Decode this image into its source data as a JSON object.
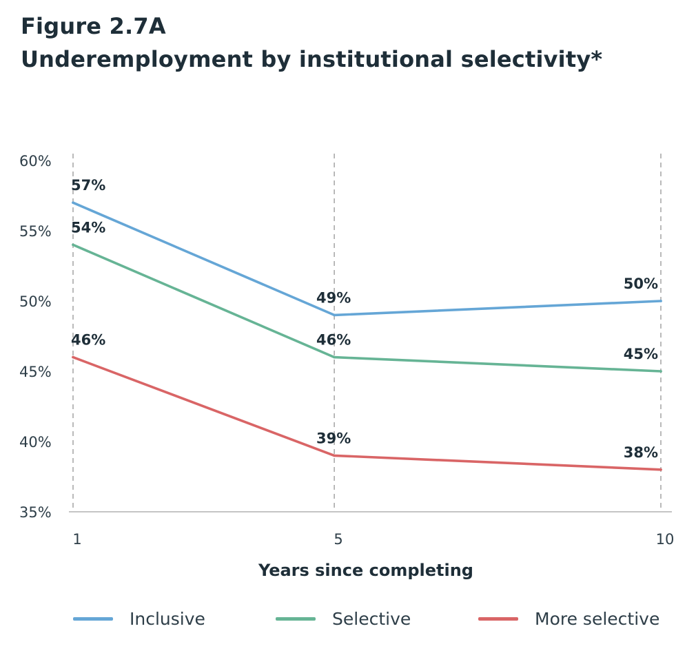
{
  "figure": {
    "label": "Figure 2.7A",
    "title": "Underemployment by institutional selectivity*"
  },
  "chart_data": {
    "type": "line",
    "x": [
      1,
      5,
      10
    ],
    "x_tick_labels": [
      "1",
      "5",
      "10"
    ],
    "xlabel": "Years since completing",
    "ylabel": "",
    "ylim": [
      35,
      60
    ],
    "y_ticks": [
      60,
      55,
      50,
      45,
      40,
      35
    ],
    "y_tick_labels": [
      "60%",
      "55%",
      "50%",
      "45%",
      "40%",
      "35%"
    ],
    "grid": "vertical dashed at each x",
    "legend_position": "bottom",
    "series": [
      {
        "name": "Inclusive",
        "color": "#65a6d6",
        "values": [
          57,
          49,
          50
        ],
        "labels": [
          "57%",
          "49%",
          "50%"
        ]
      },
      {
        "name": "Selective",
        "color": "#66b495",
        "values": [
          54,
          46,
          45
        ],
        "labels": [
          "54%",
          "46%",
          "45%"
        ]
      },
      {
        "name": "More selective",
        "color": "#d96566",
        "values": [
          46,
          39,
          38
        ],
        "labels": [
          "46%",
          "39%",
          "38%"
        ]
      }
    ]
  }
}
